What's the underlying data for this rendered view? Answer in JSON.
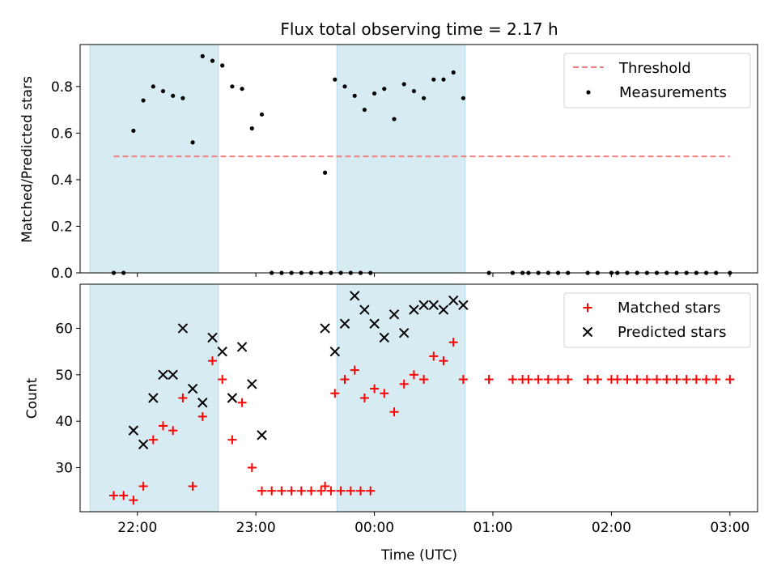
{
  "title": "Flux total observing time = 2.17 h",
  "colors": {
    "threshold": "#f08080",
    "measurement": "#000000",
    "matched": "#ff0000",
    "predicted": "#000000",
    "span": "#add8e6"
  },
  "chart_data": [
    {
      "type": "scatter",
      "ylabel": "Matched/Predicted stars",
      "xlim": [
        "21:31",
        "03:14"
      ],
      "ylim": [
        0.0,
        0.98
      ],
      "yticks": [
        0.0,
        0.2,
        0.4,
        0.6,
        0.8
      ],
      "ytick_labels": [
        "0.0",
        "0.2",
        "0.4",
        "0.6",
        "0.8"
      ],
      "grid": false,
      "legend": "top-right",
      "shaded_spans": [
        [
          "21:36",
          "22:41"
        ],
        [
          "23:41",
          "00:46"
        ]
      ],
      "threshold": {
        "name": "Threshold",
        "value": 0.5,
        "x": [
          "21:48",
          "03:00"
        ]
      },
      "series": [
        {
          "name": "Measurements",
          "points": [
            [
              "21:48",
              0.0
            ],
            [
              "21:53",
              0.0
            ],
            [
              "21:58",
              0.61
            ],
            [
              "22:03",
              0.74
            ],
            [
              "22:08",
              0.8
            ],
            [
              "22:13",
              0.78
            ],
            [
              "22:18",
              0.76
            ],
            [
              "22:23",
              0.75
            ],
            [
              "22:28",
              0.56
            ],
            [
              "22:33",
              0.93
            ],
            [
              "22:38",
              0.91
            ],
            [
              "22:43",
              0.89
            ],
            [
              "22:48",
              0.8
            ],
            [
              "22:53",
              0.79
            ],
            [
              "22:58",
              0.62
            ],
            [
              "23:03",
              0.68
            ],
            [
              "23:08",
              0.0
            ],
            [
              "23:13",
              0.0
            ],
            [
              "23:18",
              0.0
            ],
            [
              "23:23",
              0.0
            ],
            [
              "23:28",
              0.0
            ],
            [
              "23:33",
              0.0
            ],
            [
              "23:38",
              0.0
            ],
            [
              "23:43",
              0.0
            ],
            [
              "23:48",
              0.0
            ],
            [
              "23:53",
              0.0
            ],
            [
              "23:58",
              0.0
            ],
            [
              "23:35",
              0.43
            ],
            [
              "23:40",
              0.83
            ],
            [
              "23:45",
              0.8
            ],
            [
              "23:50",
              0.76
            ],
            [
              "23:55",
              0.7
            ],
            [
              "00:00",
              0.77
            ],
            [
              "00:05",
              0.79
            ],
            [
              "00:10",
              0.66
            ],
            [
              "00:15",
              0.81
            ],
            [
              "00:20",
              0.78
            ],
            [
              "00:25",
              0.75
            ],
            [
              "00:30",
              0.83
            ],
            [
              "00:35",
              0.83
            ],
            [
              "00:40",
              0.86
            ],
            [
              "00:45",
              0.75
            ],
            [
              "00:58",
              0.0
            ],
            [
              "01:10",
              0.0
            ],
            [
              "01:15",
              0.0
            ],
            [
              "01:18",
              0.0
            ],
            [
              "01:23",
              0.0
            ],
            [
              "01:28",
              0.0
            ],
            [
              "01:33",
              0.0
            ],
            [
              "01:38",
              0.0
            ],
            [
              "01:48",
              0.0
            ],
            [
              "01:53",
              0.0
            ],
            [
              "02:00",
              0.0
            ],
            [
              "02:03",
              0.0
            ],
            [
              "02:08",
              0.0
            ],
            [
              "02:13",
              0.0
            ],
            [
              "02:18",
              0.0
            ],
            [
              "02:23",
              0.0
            ],
            [
              "02:28",
              0.0
            ],
            [
              "02:33",
              0.0
            ],
            [
              "02:38",
              0.0
            ],
            [
              "02:43",
              0.0
            ],
            [
              "02:48",
              0.0
            ],
            [
              "02:53",
              0.0
            ],
            [
              "03:00",
              0.0
            ]
          ]
        }
      ]
    },
    {
      "type": "scatter",
      "xlabel": "Time (UTC)",
      "ylabel": "Count",
      "xlim": [
        "21:31",
        "03:14"
      ],
      "ylim": [
        20.5,
        69.5
      ],
      "xticks": [
        "22:00",
        "23:00",
        "00:00",
        "01:00",
        "02:00",
        "03:00"
      ],
      "yticks": [
        30,
        40,
        50,
        60
      ],
      "grid": false,
      "legend": "top-right",
      "shaded_spans": [
        [
          "21:36",
          "22:41"
        ],
        [
          "23:41",
          "00:46"
        ]
      ],
      "series": [
        {
          "name": "Matched stars",
          "marker": "plus",
          "points": [
            [
              "21:48",
              24
            ],
            [
              "21:53",
              24
            ],
            [
              "21:58",
              23
            ],
            [
              "22:03",
              26
            ],
            [
              "22:08",
              36
            ],
            [
              "22:13",
              39
            ],
            [
              "22:18",
              38
            ],
            [
              "22:23",
              45
            ],
            [
              "22:28",
              26
            ],
            [
              "22:33",
              41
            ],
            [
              "22:38",
              53
            ],
            [
              "22:43",
              49
            ],
            [
              "22:48",
              36
            ],
            [
              "22:53",
              44
            ],
            [
              "22:58",
              30
            ],
            [
              "23:03",
              25
            ],
            [
              "23:08",
              25
            ],
            [
              "23:13",
              25
            ],
            [
              "23:18",
              25
            ],
            [
              "23:23",
              25
            ],
            [
              "23:28",
              25
            ],
            [
              "23:33",
              25
            ],
            [
              "23:38",
              25
            ],
            [
              "23:43",
              25
            ],
            [
              "23:48",
              25
            ],
            [
              "23:53",
              25
            ],
            [
              "23:58",
              25
            ],
            [
              "23:35",
              26
            ],
            [
              "23:40",
              46
            ],
            [
              "23:45",
              49
            ],
            [
              "23:50",
              51
            ],
            [
              "23:55",
              45
            ],
            [
              "00:00",
              47
            ],
            [
              "00:05",
              46
            ],
            [
              "00:10",
              42
            ],
            [
              "00:15",
              48
            ],
            [
              "00:20",
              50
            ],
            [
              "00:25",
              49
            ],
            [
              "00:30",
              54
            ],
            [
              "00:35",
              53
            ],
            [
              "00:40",
              57
            ],
            [
              "00:45",
              49
            ],
            [
              "00:58",
              49
            ],
            [
              "01:10",
              49
            ],
            [
              "01:15",
              49
            ],
            [
              "01:18",
              49
            ],
            [
              "01:23",
              49
            ],
            [
              "01:28",
              49
            ],
            [
              "01:33",
              49
            ],
            [
              "01:38",
              49
            ],
            [
              "01:48",
              49
            ],
            [
              "01:53",
              49
            ],
            [
              "02:00",
              49
            ],
            [
              "02:03",
              49
            ],
            [
              "02:08",
              49
            ],
            [
              "02:13",
              49
            ],
            [
              "02:18",
              49
            ],
            [
              "02:23",
              49
            ],
            [
              "02:28",
              49
            ],
            [
              "02:33",
              49
            ],
            [
              "02:38",
              49
            ],
            [
              "02:43",
              49
            ],
            [
              "02:48",
              49
            ],
            [
              "02:53",
              49
            ],
            [
              "03:00",
              49
            ]
          ]
        },
        {
          "name": "Predicted stars",
          "marker": "x",
          "points": [
            [
              "21:58",
              38
            ],
            [
              "22:03",
              35
            ],
            [
              "22:08",
              45
            ],
            [
              "22:13",
              50
            ],
            [
              "22:18",
              50
            ],
            [
              "22:23",
              60
            ],
            [
              "22:28",
              47
            ],
            [
              "22:33",
              44
            ],
            [
              "22:38",
              58
            ],
            [
              "22:43",
              55
            ],
            [
              "22:48",
              45
            ],
            [
              "22:53",
              56
            ],
            [
              "22:58",
              48
            ],
            [
              "23:03",
              37
            ],
            [
              "23:35",
              60
            ],
            [
              "23:40",
              55
            ],
            [
              "23:45",
              61
            ],
            [
              "23:50",
              67
            ],
            [
              "23:55",
              64
            ],
            [
              "00:00",
              61
            ],
            [
              "00:05",
              58
            ],
            [
              "00:10",
              63
            ],
            [
              "00:15",
              59
            ],
            [
              "00:20",
              64
            ],
            [
              "00:25",
              65
            ],
            [
              "00:30",
              65
            ],
            [
              "00:35",
              64
            ],
            [
              "00:40",
              66
            ],
            [
              "00:45",
              65
            ]
          ]
        }
      ]
    }
  ]
}
